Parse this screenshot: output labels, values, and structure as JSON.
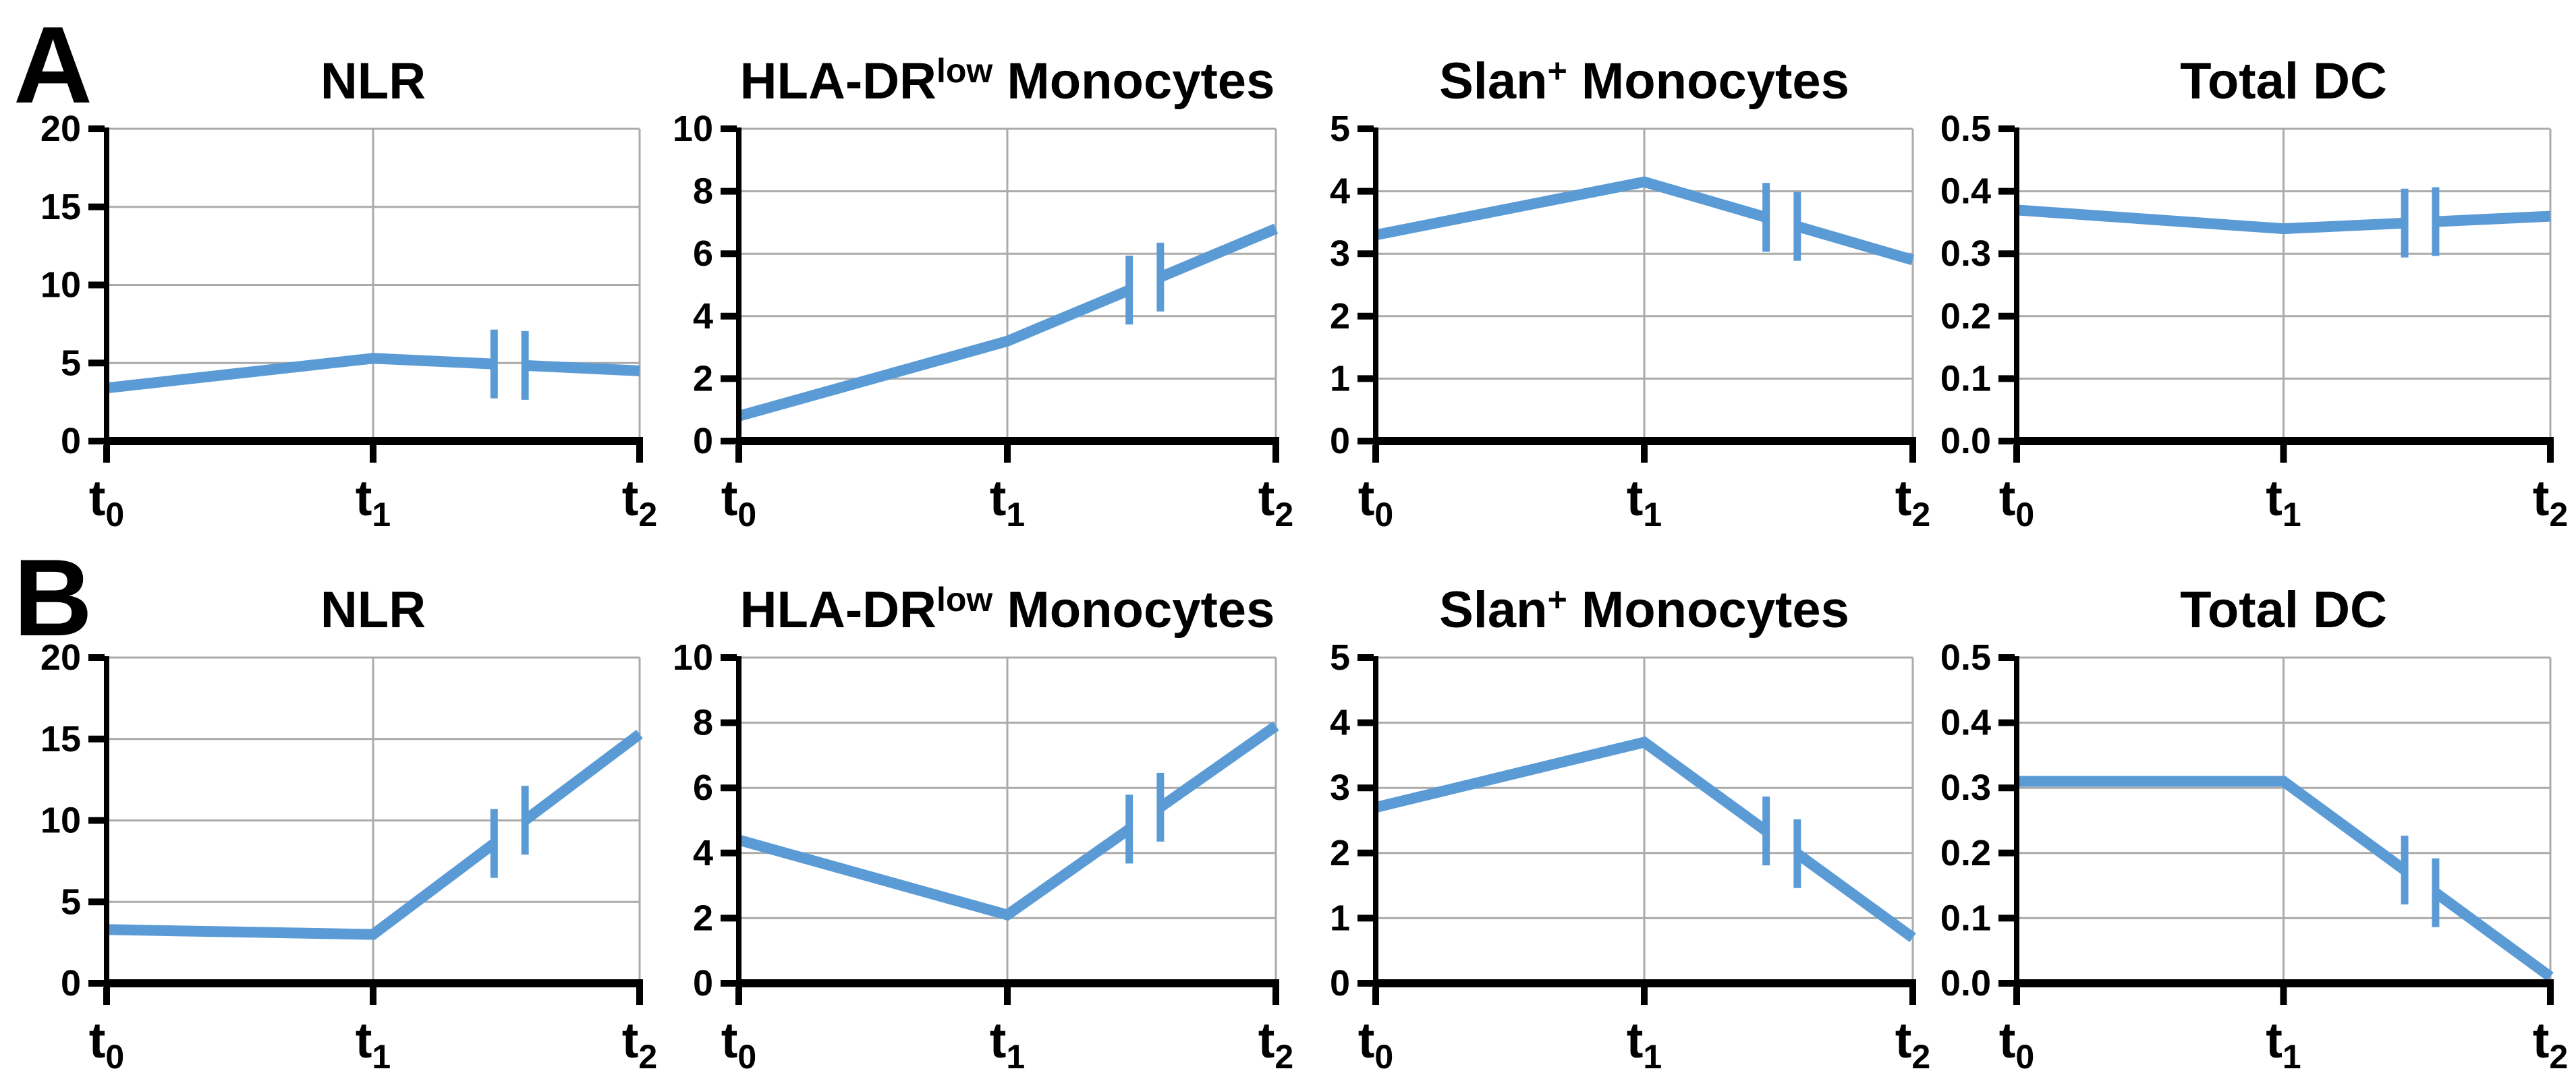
{
  "figure": {
    "background": "#ffffff",
    "line_color": "#5B9BD5",
    "grid_color": "#ABABAB",
    "axis_color": "#000000",
    "text_color": "#000000"
  },
  "panels": [
    {
      "label": "A"
    },
    {
      "label": "B"
    }
  ],
  "x_tick_parts": [
    {
      "base": "t",
      "sub": "0"
    },
    {
      "base": "t",
      "sub": "1"
    },
    {
      "base": "t",
      "sub": "2"
    }
  ],
  "chart_data": [
    {
      "panel": "A",
      "type": "line",
      "title": "NLR",
      "title_parts": [
        {
          "t": "NLR"
        }
      ],
      "categories": [
        "t0",
        "t1",
        "t2"
      ],
      "values": [
        3.4,
        5.3,
        4.5
      ],
      "ylim": [
        0,
        20
      ],
      "yticks": [
        0,
        5,
        10,
        15,
        20
      ],
      "ytick_labels": [
        "0",
        "5",
        "10",
        "15",
        "20"
      ],
      "grid": true,
      "axis_break": {
        "between": [
          "t1",
          "t2"
        ],
        "fractions": [
          0.727,
          0.785
        ]
      }
    },
    {
      "panel": "A",
      "type": "line",
      "title": "HLA-DR^low Monocytes",
      "title_parts": [
        {
          "t": "HLA-DR"
        },
        {
          "t": "low",
          "sup": true
        },
        {
          "t": " Monocytes"
        }
      ],
      "categories": [
        "t0",
        "t1",
        "t2"
      ],
      "values": [
        0.8,
        3.2,
        6.8
      ],
      "ylim": [
        0,
        10
      ],
      "yticks": [
        0,
        2,
        4,
        6,
        8,
        10
      ],
      "ytick_labels": [
        "0",
        "2",
        "4",
        "6",
        "8",
        "10"
      ],
      "grid": true,
      "axis_break": {
        "between": [
          "t1",
          "t2"
        ],
        "fractions": [
          0.727,
          0.785
        ]
      }
    },
    {
      "panel": "A",
      "type": "line",
      "title": "Slan+ Monocytes",
      "title_parts": [
        {
          "t": "Slan"
        },
        {
          "t": "+",
          "sup": true
        },
        {
          "t": " Monocytes"
        }
      ],
      "categories": [
        "t0",
        "t1",
        "t2"
      ],
      "values": [
        3.3,
        4.15,
        2.9
      ],
      "ylim": [
        0,
        5
      ],
      "yticks": [
        0,
        1,
        2,
        3,
        4,
        5
      ],
      "ytick_labels": [
        "0",
        "1",
        "2",
        "3",
        "4",
        "5"
      ],
      "grid": true,
      "axis_break": {
        "between": [
          "t1",
          "t2"
        ],
        "fractions": [
          0.727,
          0.785
        ]
      }
    },
    {
      "panel": "A",
      "type": "line",
      "title": "Total DC",
      "title_parts": [
        {
          "t": "Total DC"
        }
      ],
      "categories": [
        "t0",
        "t1",
        "t2"
      ],
      "values": [
        0.37,
        0.34,
        0.36
      ],
      "ylim": [
        0,
        0.5
      ],
      "yticks": [
        0,
        0.1,
        0.2,
        0.3,
        0.4,
        0.5
      ],
      "ytick_labels": [
        "0.0",
        "0.1",
        "0.2",
        "0.3",
        "0.4",
        "0.5"
      ],
      "grid": true,
      "axis_break": {
        "between": [
          "t1",
          "t2"
        ],
        "fractions": [
          0.727,
          0.785
        ]
      }
    },
    {
      "panel": "B",
      "type": "line",
      "title": "NLR",
      "title_parts": [
        {
          "t": "NLR"
        }
      ],
      "categories": [
        "t0",
        "t1",
        "t2"
      ],
      "values": [
        3.3,
        3.0,
        15.3
      ],
      "ylim": [
        0,
        20
      ],
      "yticks": [
        0,
        5,
        10,
        15,
        20
      ],
      "ytick_labels": [
        "0",
        "5",
        "10",
        "15",
        "20"
      ],
      "grid": true,
      "axis_break": {
        "between": [
          "t1",
          "t2"
        ],
        "fractions": [
          0.727,
          0.785
        ]
      }
    },
    {
      "panel": "B",
      "type": "line",
      "title": "HLA-DR^low Monocytes",
      "title_parts": [
        {
          "t": "HLA-DR"
        },
        {
          "t": "low",
          "sup": true
        },
        {
          "t": " Monocytes"
        }
      ],
      "categories": [
        "t0",
        "t1",
        "t2"
      ],
      "values": [
        4.4,
        2.1,
        7.9
      ],
      "ylim": [
        0,
        10
      ],
      "yticks": [
        0,
        2,
        4,
        6,
        8,
        10
      ],
      "ytick_labels": [
        "0",
        "2",
        "4",
        "6",
        "8",
        "10"
      ],
      "grid": true,
      "axis_break": {
        "between": [
          "t1",
          "t2"
        ],
        "fractions": [
          0.727,
          0.785
        ]
      }
    },
    {
      "panel": "B",
      "type": "line",
      "title": "Slan+ Monocytes",
      "title_parts": [
        {
          "t": "Slan"
        },
        {
          "t": "+",
          "sup": true
        },
        {
          "t": " Monocytes"
        }
      ],
      "categories": [
        "t0",
        "t1",
        "t2"
      ],
      "values": [
        2.7,
        3.7,
        0.7
      ],
      "ylim": [
        0,
        5
      ],
      "yticks": [
        0,
        1,
        2,
        3,
        4,
        5
      ],
      "ytick_labels": [
        "0",
        "1",
        "2",
        "3",
        "4",
        "5"
      ],
      "grid": true,
      "axis_break": {
        "between": [
          "t1",
          "t2"
        ],
        "fractions": [
          0.727,
          0.785
        ]
      }
    },
    {
      "panel": "B",
      "type": "line",
      "title": "Total DC",
      "title_parts": [
        {
          "t": "Total DC"
        }
      ],
      "categories": [
        "t0",
        "t1",
        "t2"
      ],
      "values": [
        0.31,
        0.31,
        0.01
      ],
      "ylim": [
        0,
        0.5
      ],
      "yticks": [
        0,
        0.1,
        0.2,
        0.3,
        0.4,
        0.5
      ],
      "ytick_labels": [
        "0.0",
        "0.1",
        "0.2",
        "0.3",
        "0.4",
        "0.5"
      ],
      "grid": true,
      "axis_break": {
        "between": [
          "t1",
          "t2"
        ],
        "fractions": [
          0.727,
          0.785
        ]
      }
    }
  ]
}
